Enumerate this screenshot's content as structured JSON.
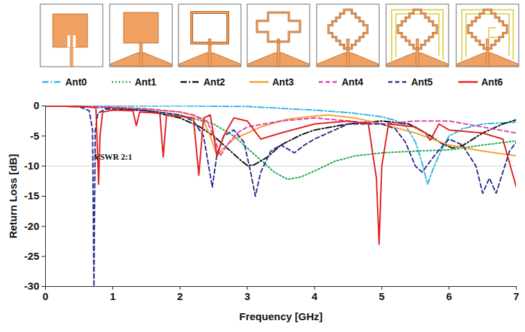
{
  "chart_data": {
    "type": "line",
    "x_label": "Frequency [GHz]",
    "y_label": "Return Loss [dB]",
    "xlim": [
      0,
      7
    ],
    "xticks": [
      0,
      1,
      2,
      3,
      4,
      5,
      6,
      7
    ],
    "ylim": [
      -30,
      0
    ],
    "yticks": [
      -30,
      -25,
      -20,
      -15,
      -10,
      -5,
      0
    ],
    "legend": "top",
    "annotations": [
      {
        "text": "VSWR 2:1",
        "x": 0.72,
        "y": -8.5,
        "y_line": -10
      }
    ],
    "series": [
      {
        "name": "Ant0",
        "color": "#29b6e6",
        "line_style": "dashdot",
        "x": [
          0,
          1,
          2,
          3,
          3.5,
          4,
          4.5,
          5,
          5.2,
          5.35,
          5.5,
          5.6,
          5.68,
          5.78,
          5.9,
          6,
          6.2,
          6.5,
          7
        ],
        "values": [
          0,
          0,
          0,
          -0.1,
          -0.4,
          -0.7,
          -1.1,
          -1.8,
          -2.4,
          -3.2,
          -6,
          -9.5,
          -13,
          -10,
          -7,
          -5,
          -3.8,
          -3,
          -2.7
        ]
      },
      {
        "name": "Ant1",
        "color": "#1ea84e",
        "line_style": "dotted",
        "x": [
          0,
          0.5,
          1,
          1.5,
          2,
          2.5,
          2.8,
          3,
          3.2,
          3.4,
          3.6,
          3.8,
          4,
          4.3,
          4.6,
          5,
          5.5,
          6,
          6.5,
          7
        ],
        "values": [
          0,
          -0.1,
          -0.3,
          -0.7,
          -1.5,
          -3,
          -5,
          -7,
          -9,
          -11,
          -12.2,
          -11.8,
          -10.8,
          -9.2,
          -8.3,
          -7.8,
          -7.5,
          -7.3,
          -6.5,
          -5.8
        ]
      },
      {
        "name": "Ant2",
        "color": "#111111",
        "line_style": "dashdot",
        "x": [
          0,
          0.5,
          1,
          1.5,
          2,
          2.3,
          2.5,
          2.7,
          2.9,
          3,
          3.1,
          3.3,
          3.5,
          3.8,
          4,
          4.5,
          5,
          5.4,
          5.7,
          5.9,
          6.05,
          6.2,
          6.5,
          6.8,
          7
        ],
        "values": [
          0,
          -0.1,
          -0.3,
          -0.8,
          -2,
          -3.5,
          -5,
          -7,
          -9,
          -9.9,
          -9.8,
          -8.5,
          -6.5,
          -4.8,
          -4,
          -3,
          -2.5,
          -3,
          -4.8,
          -6.3,
          -7,
          -6.6,
          -4.5,
          -3,
          -2.3
        ]
      },
      {
        "name": "Ant3",
        "color": "#f2a031",
        "line_style": "solid",
        "x": [
          0,
          1,
          1.5,
          2,
          2.2,
          2.35,
          2.45,
          2.55,
          2.65,
          2.8,
          3,
          3.2,
          3.6,
          4,
          4.2,
          4.6,
          5,
          5.5,
          6,
          6.5,
          7
        ],
        "values": [
          0,
          -0.2,
          -0.5,
          -1,
          -1.6,
          -2.5,
          -5,
          -8.3,
          -7,
          -5.5,
          -4.5,
          -3.5,
          -2.2,
          -1.7,
          -1.5,
          -2,
          -3,
          -4.5,
          -6.5,
          -7.5,
          -8.3
        ]
      },
      {
        "name": "Ant4",
        "color": "#e040b0",
        "line_style": "dashed",
        "x": [
          0,
          1,
          1.5,
          2,
          2.2,
          2.4,
          2.5,
          2.6,
          2.7,
          2.85,
          3,
          3.5,
          4,
          4.5,
          5,
          5.5,
          6,
          6.5,
          7
        ],
        "values": [
          0,
          -0.2,
          -0.5,
          -1,
          -1.5,
          -2.5,
          -5,
          -8.3,
          -6.5,
          -4.5,
          -3.5,
          -2.5,
          -2,
          -2.5,
          -3,
          -2.5,
          -2.5,
          -3.5,
          -4.5
        ]
      },
      {
        "name": "Ant5",
        "color": "#2b2f8f",
        "line_style": "dashed",
        "x": [
          0,
          0.5,
          0.65,
          0.7,
          0.72,
          0.74,
          0.78,
          0.9,
          1.5,
          2,
          2.2,
          2.35,
          2.48,
          2.55,
          2.65,
          2.8,
          2.95,
          3.05,
          3.12,
          3.2,
          3.35,
          3.5,
          3.7,
          3.85,
          4,
          4.5,
          5,
          5.2,
          5.35,
          5.5,
          5.6,
          5.7,
          5.8,
          6,
          6.2,
          6.4,
          6.5,
          6.6,
          6.7,
          6.8,
          6.9,
          7
        ],
        "values": [
          0,
          -0.1,
          -0.8,
          -4,
          -30,
          -4,
          -1.2,
          -0.5,
          -0.8,
          -1.5,
          -2.5,
          -5,
          -13.5,
          -8,
          -5,
          -4,
          -6,
          -11,
          -15,
          -11,
          -7.5,
          -6.5,
          -7.8,
          -6.5,
          -5.5,
          -3,
          -3,
          -3.8,
          -6,
          -10,
          -11,
          -9.5,
          -8,
          -5.5,
          -6.5,
          -10,
          -14.5,
          -12,
          -14.5,
          -11,
          -7.5,
          -6
        ]
      },
      {
        "name": "Ant6",
        "color": "#e21f1f",
        "line_style": "solid",
        "x": [
          0,
          0.5,
          0.75,
          0.79,
          0.81,
          0.85,
          1,
          1.3,
          1.35,
          1.4,
          1.7,
          1.75,
          1.8,
          2.2,
          2.28,
          2.35,
          2.45,
          2.55,
          2.65,
          2.8,
          3,
          3.2,
          3.5,
          4,
          4.5,
          4.8,
          4.92,
          4.96,
          5.0,
          5.1,
          5.5,
          5.65,
          5.72,
          5.85,
          6,
          6.5,
          6.8,
          6.95,
          7
        ],
        "values": [
          0,
          -0.1,
          -0.3,
          -13,
          -5,
          -1,
          -0.7,
          -0.8,
          -3.3,
          -1,
          -1.2,
          -8.5,
          -1.5,
          -2,
          -11.5,
          -2,
          -1.5,
          -8.3,
          -5,
          -2,
          -2.5,
          -5.5,
          -4.5,
          -3,
          -2.5,
          -3,
          -12,
          -23,
          -10,
          -3,
          -3.5,
          -4.5,
          -5.7,
          -3,
          -4,
          -4.5,
          -5.5,
          -11.5,
          -13.5
        ]
      }
    ]
  }
}
